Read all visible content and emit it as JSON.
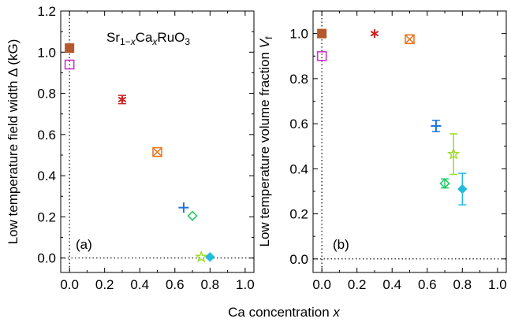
{
  "chart_data": [
    {
      "panel": "a",
      "type": "scatter",
      "panel_label": "(a)",
      "annotation": {
        "prefix": "Sr",
        "sub1": "1−x",
        "mid": "Ca",
        "sub2": "x",
        "suffix": "RuO",
        "sub3": "3"
      },
      "ylabel": "Low temperature field width Δ (kG)",
      "xlim": [
        -0.05,
        1.05
      ],
      "ylim": [
        -0.07,
        1.2
      ],
      "xticks": [
        "0.0",
        "0.2",
        "0.4",
        "0.6",
        "0.8",
        "1.0"
      ],
      "yticks": [
        "0.0",
        "0.2",
        "0.4",
        "0.6",
        "0.8",
        "1.0",
        "1.2"
      ],
      "reference_lines": {
        "x": 0,
        "y": 0,
        "style": "dotted"
      },
      "series": [
        {
          "x": 0.0,
          "y": 1.02,
          "err": 0.0,
          "marker": "filled-square",
          "color": "#b5582b"
        },
        {
          "x": 0.0,
          "y": 0.94,
          "err": 0.0,
          "marker": "open-square",
          "color": "#cc33cc"
        },
        {
          "x": 0.3,
          "y": 0.77,
          "err": 0.02,
          "marker": "asterisk",
          "color": "#cc2222"
        },
        {
          "x": 0.5,
          "y": 0.515,
          "err": 0.0,
          "marker": "x-square",
          "color": "#ee7722"
        },
        {
          "x": 0.65,
          "y": 0.245,
          "err": 0.0,
          "marker": "plus",
          "color": "#1f74dd"
        },
        {
          "x": 0.7,
          "y": 0.205,
          "err": 0.0,
          "marker": "open-diamond",
          "color": "#22cc66"
        },
        {
          "x": 0.75,
          "y": 0.005,
          "err": 0.0,
          "marker": "star",
          "color": "#99dd22"
        },
        {
          "x": 0.8,
          "y": 0.005,
          "err": 0.0,
          "marker": "filled-diamond",
          "color": "#22bbdd"
        }
      ]
    },
    {
      "panel": "b",
      "type": "scatter",
      "panel_label": "(b)",
      "ylabel": "Low temperature volume fraction V",
      "ylabel_sub": "f",
      "xlim": [
        -0.05,
        1.05
      ],
      "ylim": [
        -0.06,
        1.1
      ],
      "xticks": [
        "0.0",
        "0.2",
        "0.4",
        "0.6",
        "0.8",
        "1.0"
      ],
      "yticks": [
        "0.0",
        "0.2",
        "0.4",
        "0.6",
        "0.8",
        "1.0"
      ],
      "reference_lines": {
        "x": 0,
        "y": 0,
        "style": "dotted"
      },
      "series": [
        {
          "x": 0.0,
          "y": 1.0,
          "err": 0.0,
          "marker": "filled-square",
          "color": "#b5582b"
        },
        {
          "x": 0.0,
          "y": 0.9,
          "err": 0.0,
          "marker": "open-square",
          "color": "#cc33cc"
        },
        {
          "x": 0.3,
          "y": 1.0,
          "err": 0.0,
          "marker": "asterisk",
          "color": "#cc2222"
        },
        {
          "x": 0.5,
          "y": 0.975,
          "err": 0.0,
          "marker": "x-square",
          "color": "#ee7722"
        },
        {
          "x": 0.65,
          "y": 0.59,
          "err": 0.025,
          "marker": "plus",
          "color": "#1f74dd"
        },
        {
          "x": 0.7,
          "y": 0.335,
          "err": 0.02,
          "marker": "open-diamond",
          "color": "#22cc66"
        },
        {
          "x": 0.75,
          "y": 0.465,
          "err": 0.09,
          "marker": "star",
          "color": "#99dd22"
        },
        {
          "x": 0.8,
          "y": 0.31,
          "err": 0.07,
          "marker": "filled-diamond",
          "color": "#22bbdd"
        }
      ]
    }
  ],
  "shared_xlabel": "Ca concentration x"
}
